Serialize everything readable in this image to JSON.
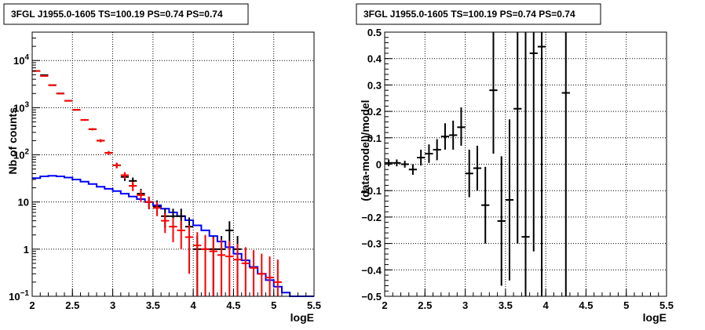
{
  "chart_data": [
    {
      "type": "line",
      "title": "3FGL J1955.0-1605 TS=100.19 PS=0.74 PS=0.74",
      "xlabel": "logE",
      "ylabel": "Nb of counts",
      "xlim": [
        2,
        5.5
      ],
      "ylim": [
        0.1,
        40000
      ],
      "yscale": "log",
      "grid": true,
      "x_ticks": [
        "2",
        "2.5",
        "3",
        "3.5",
        "4",
        "4.5",
        "5",
        "5.5"
      ],
      "y_ticks": [
        "10^-1",
        "1",
        "10",
        "10^2",
        "10^3",
        "10^4"
      ],
      "bin_width": 0.1,
      "series": [
        {
          "role": "model",
          "color": "#0000ff",
          "x": [
            2.05,
            2.15,
            2.25,
            2.35,
            2.45,
            2.55,
            2.65,
            2.75,
            2.85,
            2.95,
            3.05,
            3.15,
            3.25,
            3.35,
            3.45,
            3.55,
            3.65,
            3.75,
            3.85,
            3.95,
            4.05,
            4.15,
            4.25,
            4.35,
            4.45,
            4.55,
            4.65,
            4.75,
            4.85,
            4.95,
            5.05,
            5.15,
            5.25,
            5.35,
            5.45
          ],
          "values": [
            32,
            35,
            36,
            35,
            33,
            30,
            27,
            24,
            21,
            19,
            17,
            15,
            13,
            11.5,
            10,
            8.5,
            7.2,
            6,
            5,
            4.1,
            3.2,
            2.5,
            1.9,
            1.45,
            1.1,
            0.8,
            0.58,
            0.42,
            0.3,
            0.22,
            0.16,
            0.12,
            0.1,
            0.1,
            0.1
          ]
        },
        {
          "role": "data",
          "color": "#000000",
          "x": [
            2.05,
            2.15,
            2.25,
            2.35,
            2.45,
            2.55,
            2.65,
            2.75,
            2.85,
            2.95,
            3.05,
            3.15,
            3.25,
            3.35,
            3.45,
            3.55,
            3.65,
            3.75,
            3.85,
            3.95,
            4.05,
            4.15,
            4.25,
            4.35,
            4.45,
            4.55
          ],
          "values": [
            6000,
            4900,
            3000,
            2000,
            1400,
            900,
            550,
            350,
            200,
            110,
            60,
            34,
            28,
            15,
            10,
            8,
            5,
            5,
            5,
            3,
            1,
            1,
            1,
            1,
            2.5,
            1
          ],
          "err_low": [
            5920,
            4830,
            2945,
            1955,
            1363,
            870,
            527,
            332,
            186,
            100,
            52,
            28,
            23,
            11,
            7,
            5.2,
            2.8,
            2.8,
            2.8,
            1.3,
            0.1,
            0.1,
            0.1,
            0.1,
            1.1,
            0.1
          ],
          "err_high": [
            6080,
            4970,
            3055,
            2045,
            1437,
            930,
            573,
            368,
            214,
            120,
            68,
            40,
            33,
            19,
            13,
            10.8,
            7.2,
            7.2,
            7.2,
            4.7,
            1.9,
            1.9,
            1.9,
            1.9,
            3.9,
            1.9
          ]
        },
        {
          "role": "model_sum",
          "color": "#ff0000",
          "x": [
            2.05,
            2.15,
            2.25,
            2.35,
            2.45,
            2.55,
            2.65,
            2.75,
            2.85,
            2.95,
            3.05,
            3.15,
            3.25,
            3.35,
            3.45,
            3.55,
            3.65,
            3.75,
            3.85,
            3.95,
            4.05,
            4.15,
            4.25,
            4.35,
            4.45,
            4.55,
            4.65,
            4.75,
            4.85,
            4.95,
            5.05
          ],
          "values": [
            6000,
            4700,
            3000,
            2000,
            1400,
            900,
            550,
            350,
            200,
            110,
            60,
            37,
            22,
            14,
            10,
            7.5,
            4,
            3,
            2.5,
            1.8,
            1.2,
            1,
            0.9,
            0.75,
            0.7,
            0.6,
            0.5,
            0.4,
            0.3,
            0.25,
            0.2
          ],
          "err_low": [
            5920,
            4630,
            2945,
            1955,
            1363,
            870,
            527,
            332,
            186,
            100,
            52,
            31,
            17,
            10,
            7,
            5,
            2.2,
            1.4,
            1,
            0.3,
            0.1,
            0.1,
            0.1,
            0.1,
            0.1,
            0.1,
            0.1,
            0.1,
            0.1,
            0.1,
            0.1
          ],
          "err_high": [
            6080,
            4770,
            3055,
            2045,
            1437,
            930,
            573,
            368,
            214,
            120,
            68,
            43,
            27,
            18,
            13,
            10,
            5.8,
            4.6,
            4,
            3.2,
            2.3,
            2,
            1.8,
            1.6,
            1.5,
            1.3,
            1.1,
            0.95,
            0.8,
            0.7,
            0.6
          ]
        }
      ]
    },
    {
      "type": "scatter",
      "title": "3FGL J1955.0-1605 TS=100.19 PS=0.74 PS=0.74",
      "xlabel": "logE",
      "ylabel": "(data-model)/model",
      "xlim": [
        2,
        5.5
      ],
      "ylim": [
        -0.5,
        0.5
      ],
      "grid": true,
      "x_ticks": [
        "2",
        "2.5",
        "3",
        "3.5",
        "4",
        "4.5",
        "5",
        "5.5"
      ],
      "y_ticks": [
        "-0.5",
        "-0.4",
        "-0.3",
        "-0.2",
        "-0.1",
        "0",
        "0.1",
        "0.2",
        "0.3",
        "0.4",
        "0.5"
      ],
      "bin_width": 0.1,
      "series": [
        {
          "color": "#000000",
          "x": [
            2.05,
            2.15,
            2.25,
            2.35,
            2.45,
            2.55,
            2.65,
            2.75,
            2.85,
            2.95,
            3.05,
            3.15,
            3.25,
            3.35,
            3.45,
            3.55,
            3.65,
            3.75,
            3.85,
            3.95,
            4.25
          ],
          "values": [
            0.005,
            0.005,
            0.0,
            -0.02,
            0.025,
            0.04,
            0.055,
            0.105,
            0.11,
            0.14,
            -0.035,
            -0.015,
            -0.155,
            0.28,
            -0.215,
            -0.135,
            0.21,
            -0.275,
            0.42,
            0.445,
            0.27
          ],
          "err_low": [
            -0.008,
            -0.008,
            -0.013,
            -0.04,
            -0.005,
            0.005,
            0.015,
            0.055,
            0.055,
            0.07,
            -0.125,
            -0.1,
            -0.3,
            0.04,
            -0.46,
            -0.44,
            -0.3,
            -0.6,
            -0.33,
            -0.6,
            -0.6
          ],
          "err_high": [
            0.018,
            0.018,
            0.013,
            0.0,
            0.055,
            0.075,
            0.095,
            0.155,
            0.165,
            0.215,
            0.055,
            0.07,
            -0.01,
            0.6,
            0.03,
            0.17,
            0.6,
            0.6,
            0.6,
            0.6,
            0.6
          ]
        }
      ]
    }
  ]
}
